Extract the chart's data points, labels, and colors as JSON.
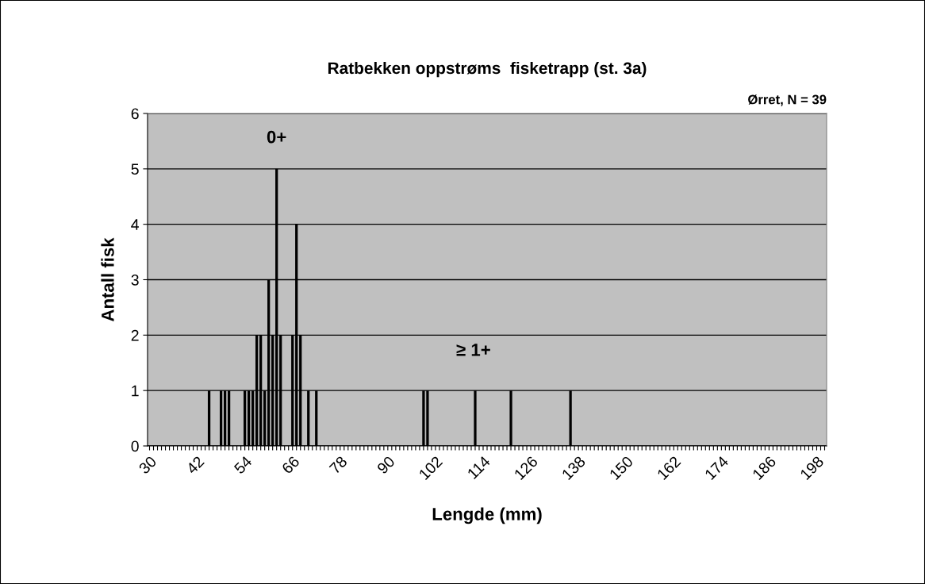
{
  "chart_data": {
    "type": "bar",
    "title": "Ratbekken oppstrøms  fisketrapp (st. 3a)",
    "xlabel": "Lengde (mm)",
    "ylabel": "Antall fisk",
    "annotations": [
      "0+",
      "≥ 1+",
      "Ørret, N = 39"
    ],
    "categories": [
      "30",
      null,
      null,
      null,
      null,
      null,
      null,
      null,
      null,
      null,
      null,
      null,
      "42",
      null,
      null,
      null,
      null,
      null,
      null,
      null,
      null,
      null,
      null,
      null,
      "54",
      null,
      null,
      null,
      null,
      null,
      null,
      null,
      null,
      null,
      null,
      null,
      "66",
      null,
      null,
      null,
      null,
      null,
      null,
      null,
      null,
      null,
      null,
      null,
      "78",
      null,
      null,
      null,
      null,
      null,
      null,
      null,
      null,
      null,
      null,
      null,
      "90",
      null,
      null,
      null,
      null,
      null,
      null,
      null,
      null,
      null,
      null,
      null,
      "102",
      null,
      null,
      null,
      null,
      null,
      null,
      null,
      null,
      null,
      null,
      null,
      "114",
      null,
      null,
      null,
      null,
      null,
      null,
      null,
      null,
      null,
      null,
      null,
      "126",
      null,
      null,
      null,
      null,
      null,
      null,
      null,
      null,
      null,
      null,
      null,
      "138",
      null,
      null,
      null,
      null,
      null,
      null,
      null,
      null,
      null,
      null,
      null,
      "150",
      null,
      null,
      null,
      null,
      null,
      null,
      null,
      null,
      null,
      null,
      null,
      "162",
      null,
      null,
      null,
      null,
      null,
      null,
      null,
      null,
      null,
      null,
      null,
      "174",
      null,
      null,
      null,
      null,
      null,
      null,
      null,
      null,
      null,
      null,
      null,
      "186",
      null,
      null,
      null,
      null,
      null,
      null,
      null,
      null,
      null,
      null,
      null,
      "198",
      null,
      null
    ],
    "values": [
      0,
      0,
      0,
      0,
      0,
      0,
      0,
      0,
      0,
      0,
      0,
      0,
      0,
      0,
      0,
      1,
      0,
      0,
      1,
      1,
      1,
      0,
      0,
      0,
      1,
      1,
      1,
      2,
      2,
      1,
      3,
      2,
      5,
      2,
      0,
      0,
      2,
      4,
      2,
      0,
      1,
      0,
      1,
      0,
      0,
      0,
      0,
      0,
      0,
      0,
      0,
      0,
      0,
      0,
      0,
      0,
      0,
      0,
      0,
      0,
      0,
      0,
      0,
      0,
      0,
      0,
      0,
      0,
      0,
      1,
      1,
      0,
      0,
      0,
      0,
      0,
      0,
      0,
      0,
      0,
      0,
      0,
      1,
      0,
      0,
      0,
      0,
      0,
      0,
      0,
      0,
      1,
      0,
      0,
      0,
      0,
      0,
      0,
      0,
      0,
      0,
      0,
      0,
      0,
      0,
      0,
      1,
      0,
      0,
      0,
      0,
      0,
      0,
      0,
      0,
      0,
      0,
      0,
      0,
      0,
      0,
      0,
      0,
      0,
      0,
      0,
      0,
      0,
      0,
      0,
      0,
      0,
      0,
      0,
      0,
      0,
      0,
      0,
      0,
      0,
      0,
      0,
      0,
      0,
      0,
      0,
      0,
      0,
      0,
      0,
      0,
      0,
      0,
      0,
      0,
      0,
      0,
      0,
      0,
      0,
      0,
      0,
      0,
      0,
      0,
      0,
      0,
      0,
      0,
      0,
      0
    ],
    "color": "#000000",
    "ylim": [
      0,
      6
    ],
    "yticks": [
      0,
      1,
      2,
      3,
      4,
      5,
      6
    ],
    "grid": "y",
    "legend": false
  }
}
